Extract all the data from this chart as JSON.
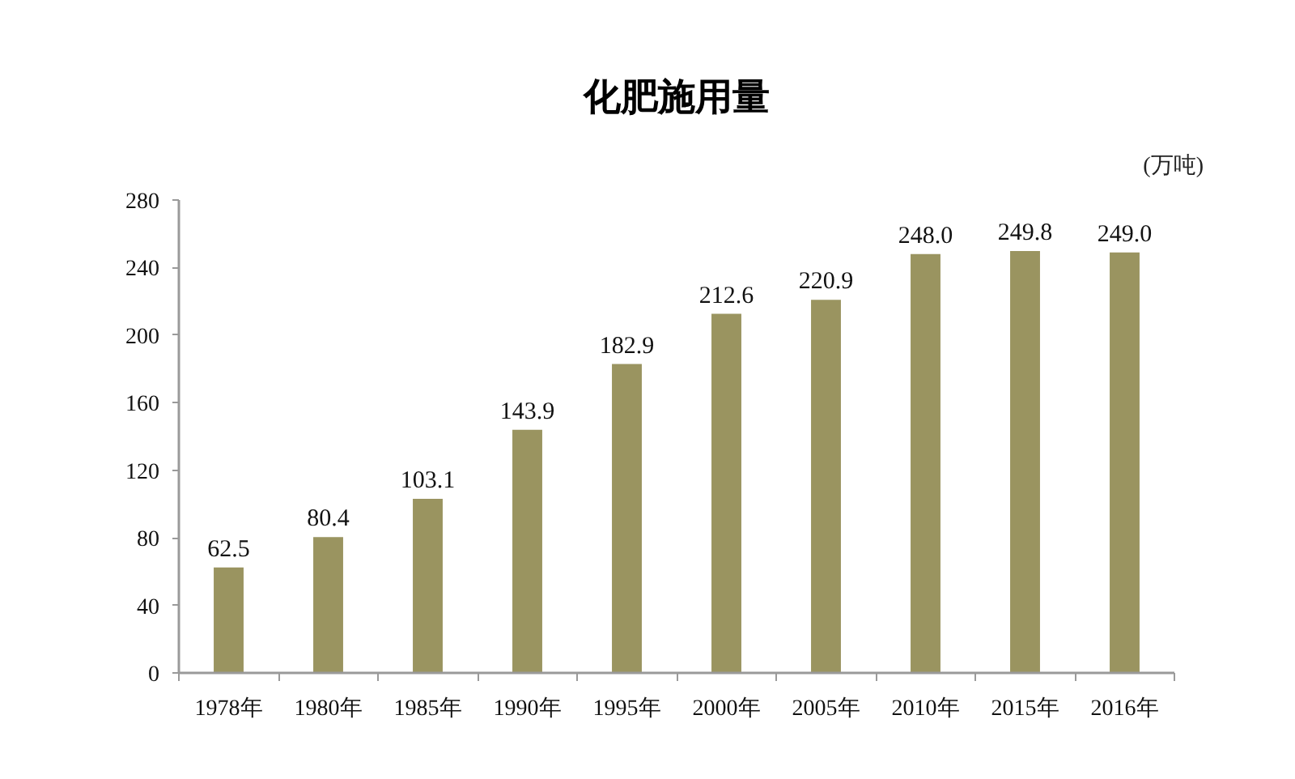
{
  "chart_data": {
    "type": "bar",
    "title": "化肥施用量",
    "ylabel": "(万吨)",
    "categories": [
      "1978年",
      "1980年",
      "1985年",
      "1990年",
      "1995年",
      "2000年",
      "2005年",
      "2010年",
      "2015年",
      "2016年"
    ],
    "values": [
      62.5,
      80.4,
      103.1,
      143.9,
      182.9,
      212.6,
      220.9,
      248.0,
      249.8,
      249.0
    ],
    "value_labels": [
      "62.5",
      "80.4",
      "103.1",
      "143.9",
      "182.9",
      "212.6",
      "220.9",
      "248.0",
      "249.8",
      "249.0"
    ],
    "color": "#9a9460",
    "ylim": [
      0,
      280
    ],
    "yticks": [
      0,
      40,
      80,
      120,
      160,
      200,
      240,
      280
    ],
    "grid": false
  }
}
